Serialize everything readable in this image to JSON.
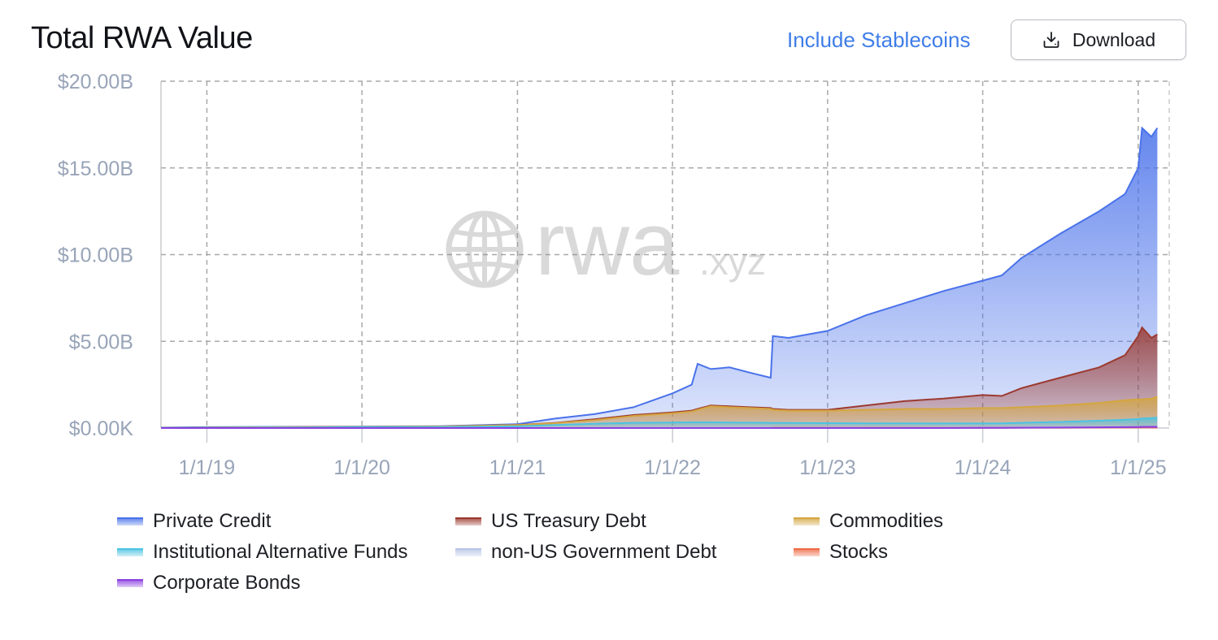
{
  "header": {
    "title": "Total RWA Value",
    "stablecoins_toggle": "Include Stablecoins",
    "download_label": "Download",
    "download_icon": "download-icon"
  },
  "watermark": {
    "text": "rwa",
    "suffix": ".xyz",
    "icon": "globe-icon"
  },
  "chart_data": {
    "type": "area",
    "stacked": true,
    "title": "Total RWA Value",
    "y_ticks": [
      "$20.00B",
      "$15.00B",
      "$10.00B",
      "$5.00B",
      "$0.00K"
    ],
    "x_ticks": [
      "1/1/19",
      "1/1/20",
      "1/1/21",
      "1/1/22",
      "1/1/23",
      "1/1/24",
      "1/1/25"
    ],
    "ylim": [
      0,
      20
    ],
    "y_unit": "billions USD",
    "xlim": [
      "2018-09-15",
      "2025-03-15"
    ],
    "grid": true,
    "legend_position": "bottom",
    "x": [
      "2018-09-15",
      "2019-01-01",
      "2019-07-01",
      "2020-01-01",
      "2020-07-01",
      "2021-01-01",
      "2021-04-01",
      "2021-07-01",
      "2021-10-01",
      "2022-01-01",
      "2022-02-15",
      "2022-03-01",
      "2022-04-01",
      "2022-05-15",
      "2022-07-01",
      "2022-08-20",
      "2022-08-25",
      "2022-10-01",
      "2023-01-01",
      "2023-04-01",
      "2023-07-01",
      "2023-10-01",
      "2024-01-01",
      "2024-02-15",
      "2024-04-01",
      "2024-07-01",
      "2024-10-01",
      "2024-12-01",
      "2025-01-01",
      "2025-01-10",
      "2025-02-01",
      "2025-02-15"
    ],
    "totals": [
      {
        "name": "Private Credit",
        "values": [
          0.03,
          0.05,
          0.07,
          0.09,
          0.11,
          0.22,
          0.55,
          0.8,
          1.2,
          2.0,
          2.5,
          3.7,
          3.4,
          3.5,
          3.2,
          2.9,
          5.3,
          5.2,
          5.6,
          6.5,
          7.2,
          7.9,
          8.5,
          8.8,
          9.8,
          11.2,
          12.5,
          13.5,
          15.0,
          17.3,
          16.8,
          17.3
        ]
      },
      {
        "name": "US Treasury Debt",
        "values": [
          0.02,
          0.03,
          0.05,
          0.07,
          0.09,
          0.18,
          0.3,
          0.5,
          0.75,
          0.9,
          1.0,
          1.1,
          1.3,
          1.25,
          1.2,
          1.15,
          1.1,
          1.05,
          1.05,
          1.3,
          1.55,
          1.7,
          1.9,
          1.85,
          2.3,
          2.9,
          3.5,
          4.2,
          5.3,
          5.8,
          5.2,
          5.4
        ]
      },
      {
        "name": "Commodities",
        "values": [
          0.02,
          0.03,
          0.05,
          0.07,
          0.09,
          0.17,
          0.28,
          0.45,
          0.7,
          0.85,
          0.95,
          1.05,
          1.25,
          1.2,
          1.15,
          1.1,
          1.05,
          1.0,
          1.0,
          1.05,
          1.1,
          1.1,
          1.15,
          1.15,
          1.2,
          1.3,
          1.45,
          1.6,
          1.65,
          1.65,
          1.7,
          1.8
        ]
      },
      {
        "name": "Institutional Alternative Funds",
        "values": [
          0.01,
          0.02,
          0.03,
          0.05,
          0.06,
          0.1,
          0.18,
          0.25,
          0.3,
          0.32,
          0.33,
          0.33,
          0.33,
          0.32,
          0.31,
          0.3,
          0.3,
          0.29,
          0.28,
          0.27,
          0.27,
          0.26,
          0.26,
          0.27,
          0.3,
          0.35,
          0.42,
          0.48,
          0.52,
          0.55,
          0.57,
          0.6
        ]
      },
      {
        "name": "non-US Government Debt",
        "values": [
          0,
          0,
          0,
          0,
          0,
          0,
          0.01,
          0.01,
          0.01,
          0.02,
          0.02,
          0.02,
          0.02,
          0.02,
          0.02,
          0.02,
          0.02,
          0.02,
          0.03,
          0.03,
          0.03,
          0.04,
          0.04,
          0.04,
          0.05,
          0.06,
          0.06,
          0.07,
          0.07,
          0.08,
          0.08,
          0.08
        ]
      },
      {
        "name": "Stocks",
        "values": [
          0,
          0,
          0,
          0,
          0,
          0,
          0,
          0,
          0,
          0,
          0,
          0,
          0,
          0,
          0,
          0,
          0.01,
          0.01,
          0.01,
          0.01,
          0.01,
          0.01,
          0.01,
          0.01,
          0.02,
          0.02,
          0.03,
          0.03,
          0.03,
          0.03,
          0.03,
          0.03
        ]
      },
      {
        "name": "Corporate Bonds",
        "values": [
          0,
          0,
          0,
          0,
          0,
          0,
          0,
          0,
          0,
          0,
          0,
          0,
          0,
          0,
          0,
          0,
          0,
          0,
          0,
          0,
          0,
          0,
          0.01,
          0.01,
          0.02,
          0.03,
          0.04,
          0.05,
          0.06,
          0.07,
          0.07,
          0.07
        ]
      }
    ],
    "series_colors": {
      "Private Credit": "#4a72ea",
      "US Treasury Debt": "#9c3a30",
      "Commodities": "#d4a640",
      "Institutional Alternative Funds": "#4cc3e2",
      "non-US Government Debt": "#b7c6e6",
      "Stocks": "#ee6a44",
      "Corporate Bonds": "#8a3fe0"
    },
    "legend": [
      "Private Credit",
      "US Treasury Debt",
      "Commodities",
      "Institutional Alternative Funds",
      "non-US Government Debt",
      "Stocks",
      "Corporate Bonds"
    ]
  }
}
